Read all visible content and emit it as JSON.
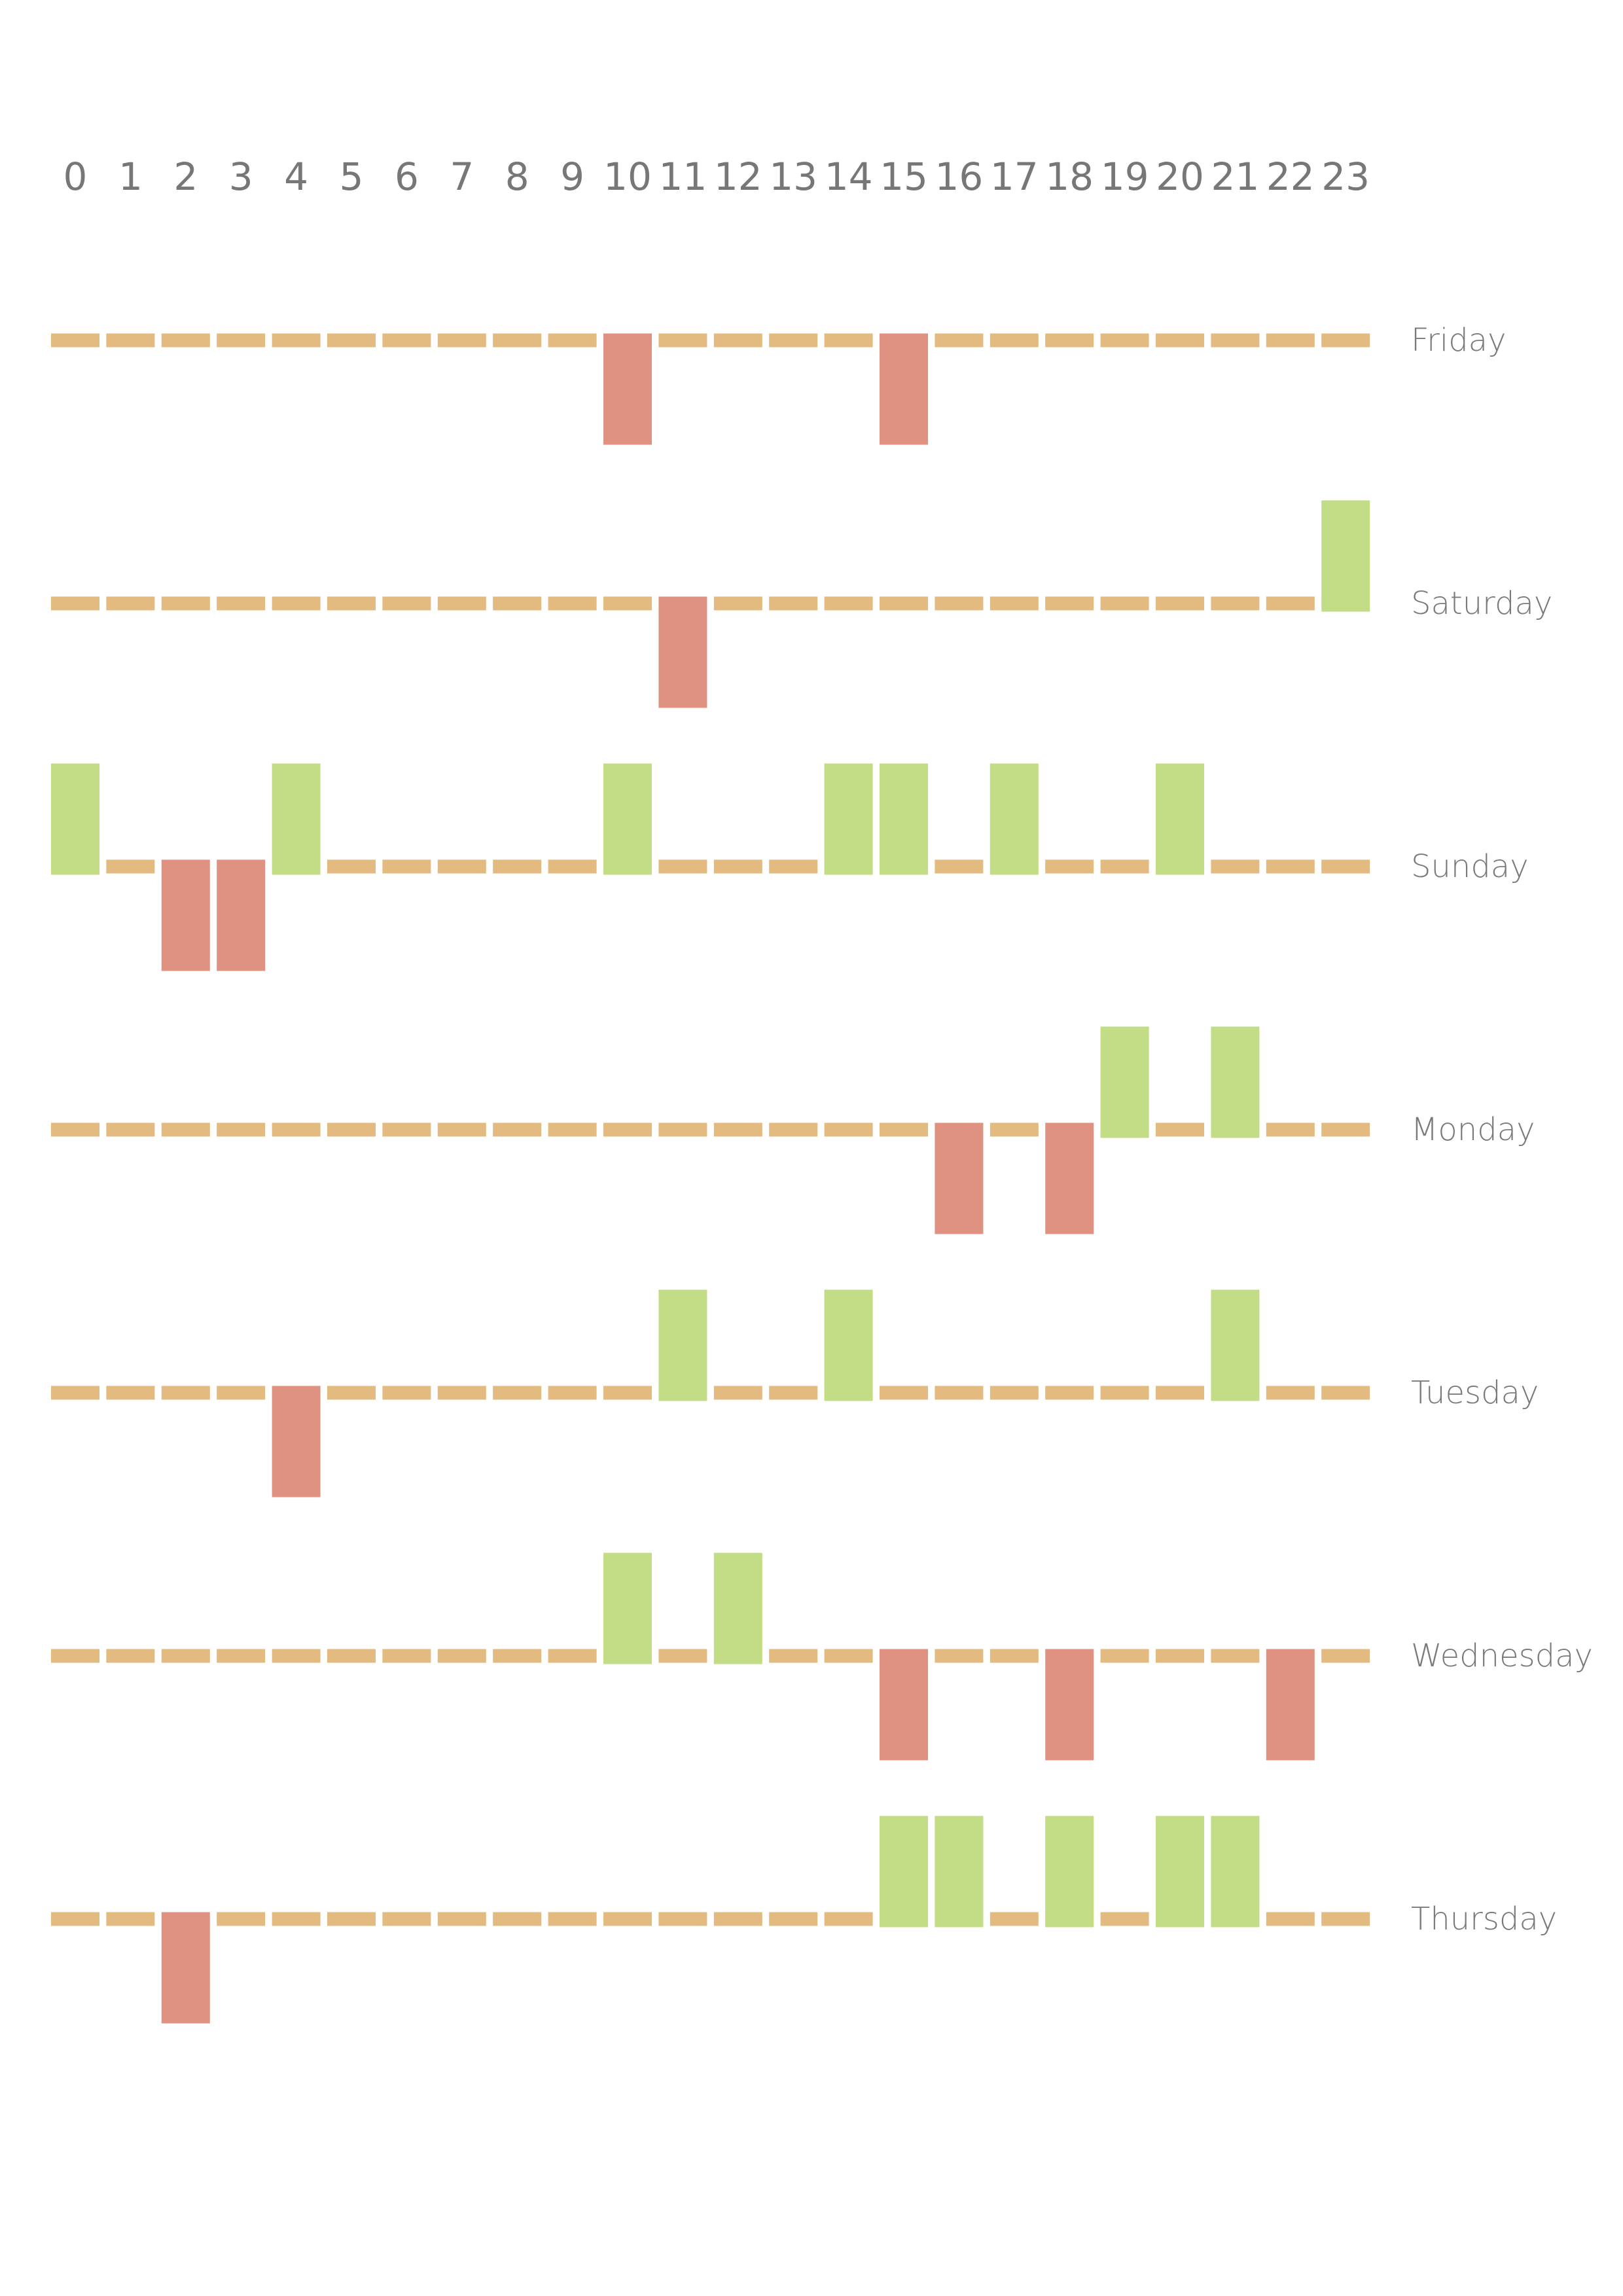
{
  "chart_data": {
    "type": "heatmap",
    "title": "",
    "xlabel": "",
    "ylabel": "",
    "hours": [
      "0",
      "1",
      "2",
      "3",
      "4",
      "5",
      "6",
      "7",
      "8",
      "9",
      "10",
      "11",
      "12",
      "13",
      "14",
      "15",
      "16",
      "17",
      "18",
      "19",
      "20",
      "21",
      "22",
      "23"
    ],
    "levels": {
      "-1": "below",
      "0": "neutral",
      "1": "above"
    },
    "colors": {
      "above": "#c2dd86",
      "neutral": "#e3bb80",
      "below": "#e09282"
    },
    "days": [
      {
        "name": "Friday",
        "values": [
          0,
          0,
          0,
          0,
          0,
          0,
          0,
          0,
          0,
          0,
          -1,
          0,
          0,
          0,
          0,
          -1,
          0,
          0,
          0,
          0,
          0,
          0,
          0,
          0
        ]
      },
      {
        "name": "Saturday",
        "values": [
          0,
          0,
          0,
          0,
          0,
          0,
          0,
          0,
          0,
          0,
          0,
          -1,
          0,
          0,
          0,
          0,
          0,
          0,
          0,
          0,
          0,
          0,
          0,
          1
        ]
      },
      {
        "name": "Sunday",
        "values": [
          1,
          0,
          -1,
          -1,
          1,
          0,
          0,
          0,
          0,
          0,
          1,
          0,
          0,
          0,
          1,
          1,
          0,
          1,
          0,
          0,
          1,
          0,
          0,
          0
        ]
      },
      {
        "name": "Monday",
        "values": [
          0,
          0,
          0,
          0,
          0,
          0,
          0,
          0,
          0,
          0,
          0,
          0,
          0,
          0,
          0,
          0,
          -1,
          0,
          -1,
          1,
          0,
          1,
          0,
          0
        ]
      },
      {
        "name": "Tuesday",
        "values": [
          0,
          0,
          0,
          0,
          -1,
          0,
          0,
          0,
          0,
          0,
          0,
          1,
          0,
          0,
          1,
          0,
          0,
          0,
          0,
          0,
          0,
          1,
          0,
          0
        ]
      },
      {
        "name": "Wednesday",
        "values": [
          0,
          0,
          0,
          0,
          0,
          0,
          0,
          0,
          0,
          0,
          1,
          0,
          1,
          0,
          0,
          -1,
          0,
          0,
          -1,
          0,
          0,
          0,
          -1,
          0
        ]
      },
      {
        "name": "Thursday",
        "values": [
          0,
          0,
          -1,
          0,
          0,
          0,
          0,
          0,
          0,
          0,
          0,
          0,
          0,
          0,
          0,
          1,
          1,
          0,
          1,
          0,
          1,
          1,
          0,
          0
        ]
      }
    ]
  }
}
